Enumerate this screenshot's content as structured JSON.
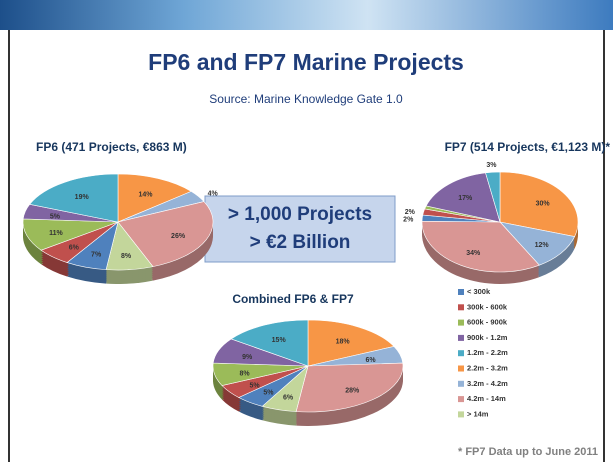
{
  "slide": {
    "title": "FP6 and FP7 Marine Projects",
    "subtitle": "Source: Marine Knowledge Gate 1.0",
    "callout": [
      "> 1,000 Projects",
      "> €2 Billion"
    ],
    "footnote": "* FP7 Data up to June 2011"
  },
  "chart_data": [
    {
      "type": "pie",
      "title": "FP6 (471 Projects, €863 M)",
      "categories": [
        "< 300k",
        "300k - 600k",
        "600k - 900k",
        "900k - 1.2m",
        "1.2m - 2.2m",
        "2.2m - 3.2m",
        "3.2m - 4.2m",
        "4.2m - 14m",
        "> 14m"
      ],
      "colors": [
        "#4f81bd",
        "#c0504d",
        "#9bbb59",
        "#8064a2",
        "#4bacc6",
        "#f79646",
        "#95b3d7",
        "#d99694",
        "#c3d69b"
      ],
      "values": [
        7,
        6,
        11,
        5,
        19,
        14,
        4,
        26,
        8
      ],
      "value_labels": [
        "7%",
        "6%",
        "11%",
        "5%",
        "19%",
        "14%",
        "4%",
        "26%",
        "8%"
      ]
    },
    {
      "type": "pie",
      "title": "FP7 (514 Projects, €1,123 M)*",
      "categories": [
        "< 300k",
        "300k - 600k",
        "600k - 900k",
        "900k - 1.2m",
        "1.2m - 2.2m",
        "2.2m - 3.2m",
        "3.2m - 4.2m",
        "4.2m - 14m",
        "> 14m"
      ],
      "colors": [
        "#4f81bd",
        "#c0504d",
        "#9bbb59",
        "#8064a2",
        "#4bacc6",
        "#f79646",
        "#95b3d7",
        "#d99694",
        "#c3d69b"
      ],
      "values": [
        2,
        2,
        1,
        17,
        3,
        30,
        12,
        34,
        0
      ],
      "value_labels": [
        "2%",
        "2%",
        null,
        "17%",
        "3%",
        "30%",
        "12%",
        "34%",
        null
      ]
    },
    {
      "type": "pie",
      "title": "Combined FP6 & FP7",
      "legend": "right",
      "categories": [
        "< 300k",
        "300k - 600k",
        "600k - 900k",
        "900k - 1.2m",
        "1.2m - 2.2m",
        "2.2m - 3.2m",
        "3.2m - 4.2m",
        "4.2m - 14m",
        "> 14m"
      ],
      "colors": [
        "#4f81bd",
        "#c0504d",
        "#9bbb59",
        "#8064a2",
        "#4bacc6",
        "#f79646",
        "#95b3d7",
        "#d99694",
        "#c3d69b"
      ],
      "values": [
        5,
        5,
        8,
        9,
        15,
        18,
        6,
        28,
        6
      ],
      "value_labels": [
        "5%",
        "5%",
        "8%",
        "9%",
        "15%",
        "18%",
        "6%",
        "28%",
        "6%"
      ]
    }
  ]
}
